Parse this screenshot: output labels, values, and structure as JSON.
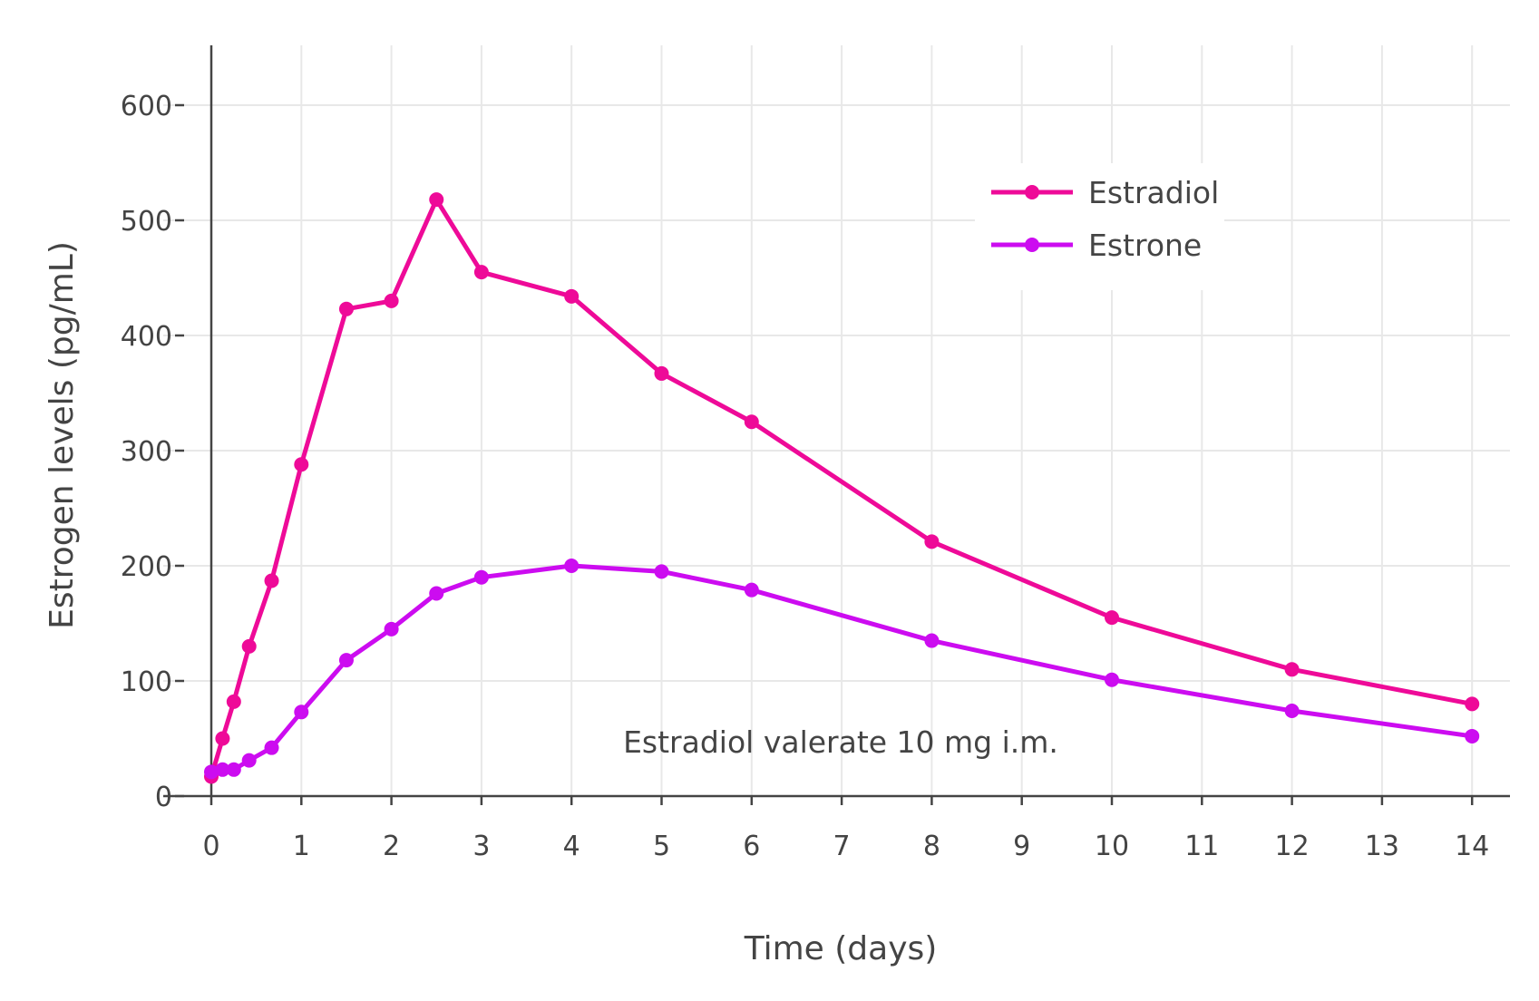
{
  "chart_data": {
    "type": "line",
    "title": "",
    "xlabel": "Time (days)",
    "ylabel": "Estrogen levels (pg/mL)",
    "xlim": [
      0,
      14.4
    ],
    "ylim": [
      -5,
      640
    ],
    "xticks": [
      0,
      1,
      2,
      3,
      4,
      5,
      6,
      7,
      8,
      9,
      10,
      11,
      12,
      13,
      14
    ],
    "yticks": [
      0,
      100,
      200,
      300,
      400,
      500,
      600
    ],
    "grid": true,
    "legend_position": "top-right",
    "annotation": "Estradiol valerate 10 mg i.m.",
    "series": [
      {
        "name": "Estradiol",
        "color": "#ee0a98",
        "x": [
          0,
          0.125,
          0.25,
          0.42,
          0.67,
          1,
          1.5,
          2,
          2.5,
          3,
          4,
          5,
          6,
          8,
          10,
          12,
          14
        ],
        "y": [
          17,
          50,
          82,
          130,
          187,
          288,
          423,
          430,
          518,
          455,
          434,
          367,
          325,
          221,
          155,
          110,
          80
        ]
      },
      {
        "name": "Estrone",
        "color": "#cc0cf0",
        "x": [
          0,
          0.125,
          0.25,
          0.42,
          0.67,
          1,
          1.5,
          2,
          2.5,
          3,
          4,
          5,
          6,
          8,
          10,
          12,
          14
        ],
        "y": [
          21,
          23,
          23,
          31,
          42,
          73,
          118,
          145,
          176,
          190,
          200,
          195,
          179,
          135,
          101,
          74,
          52
        ]
      }
    ]
  }
}
